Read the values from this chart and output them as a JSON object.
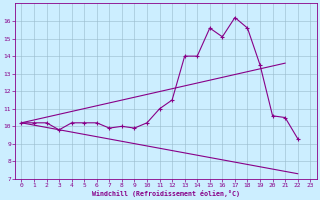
{
  "xlabel": "Windchill (Refroidissement éolien,°C)",
  "x_ticks": [
    0,
    1,
    2,
    3,
    4,
    5,
    6,
    7,
    8,
    9,
    10,
    11,
    12,
    13,
    14,
    15,
    16,
    17,
    18,
    19,
    20,
    21,
    22,
    23
  ],
  "ylim": [
    7,
    17
  ],
  "xlim": [
    -0.5,
    23.5
  ],
  "y_ticks": [
    7,
    8,
    9,
    10,
    11,
    12,
    13,
    14,
    15,
    16
  ],
  "bg_color": "#cceeff",
  "line_color": "#880088",
  "grid_color": "#99bbcc",
  "line1_x": [
    0,
    1,
    2,
    3,
    4,
    5,
    6,
    7,
    8,
    9,
    10,
    11,
    12,
    13,
    14,
    15,
    16,
    17,
    18,
    19,
    20,
    21,
    22
  ],
  "line1_y": [
    10.2,
    10.2,
    10.2,
    9.8,
    10.2,
    10.2,
    10.2,
    9.9,
    10.0,
    9.9,
    10.2,
    11.0,
    11.5,
    14.0,
    14.0,
    15.6,
    15.1,
    16.2,
    15.6,
    13.5,
    10.6,
    10.5,
    9.3
  ],
  "line2_x": [
    0,
    21
  ],
  "line2_y": [
    10.2,
    13.6
  ],
  "line3_x": [
    0,
    22
  ],
  "line3_y": [
    10.2,
    7.3
  ]
}
